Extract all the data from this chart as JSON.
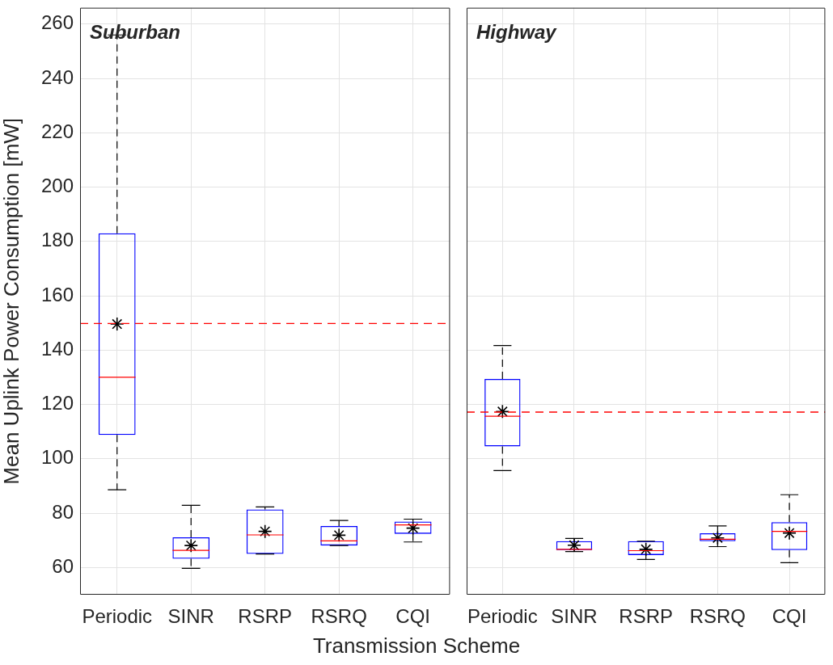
{
  "chart_data": [
    {
      "type": "box",
      "annotations": [
        "Suburban"
      ],
      "xlabel": "Transmission Scheme",
      "ylabel": "Mean Uplink Power Consumption [mW]",
      "categories": [
        "Periodic",
        "SINR",
        "RSRP",
        "RSRQ",
        "CQI"
      ],
      "ylim": [
        50,
        266
      ],
      "yticks": [
        60,
        80,
        100,
        120,
        140,
        160,
        180,
        200,
        220,
        240,
        260
      ],
      "grid": true,
      "ref_lines": [
        {
          "axis": "y",
          "value": 149.8,
          "color": "#ff0000",
          "line_style": "dashed"
        }
      ],
      "series": [
        {
          "color": "#0000ff",
          "boxes": [
            {
              "low": 88.6,
              "q1": 108.8,
              "median": 130,
              "q3": 183,
              "high": 256,
              "mean": 149.6
            },
            {
              "low": 59.7,
              "q1": 63.2,
              "median": 66.3,
              "q3": 71.1,
              "high": 82.9,
              "mean": 68.1
            },
            {
              "low": 65,
              "q1": 65,
              "median": 72,
              "q3": 81.4,
              "high": 82.3,
              "mean": 73.3
            },
            {
              "low": 68.1,
              "q1": 68.1,
              "median": 69.8,
              "q3": 75.3,
              "high": 77.3,
              "mean": 71.9
            },
            {
              "low": 69.4,
              "q1": 72.4,
              "median": 75.7,
              "q3": 76.9,
              "high": 77.8,
              "mean": 74.5
            }
          ]
        }
      ]
    },
    {
      "type": "box",
      "annotations": [
        "Highway"
      ],
      "categories": [
        "Periodic",
        "SINR",
        "RSRP",
        "RSRQ",
        "CQI"
      ],
      "ylim": [
        50,
        266
      ],
      "yticks": [
        60,
        80,
        100,
        120,
        140,
        160,
        180,
        200,
        220,
        240,
        260
      ],
      "grid": true,
      "tick_labels": "x",
      "ref_lines": [
        {
          "axis": "y",
          "value": 117.2,
          "color": "#ff0000",
          "line_style": "dashed"
        }
      ],
      "series": [
        {
          "color": "#0000ff",
          "boxes": [
            {
              "low": 95.7,
              "q1": 104.6,
              "median": 115.7,
              "q3": 129.4,
              "high": 141.7,
              "mean": 117.4
            },
            {
              "low": 65.9,
              "q1": 66.4,
              "median": 66.7,
              "q3": 69.7,
              "high": 70.7,
              "mean": 68.2
            },
            {
              "low": 63,
              "q1": 64.6,
              "median": 66.2,
              "q3": 69.7,
              "high": 69.7,
              "mean": 66.7
            },
            {
              "low": 67.7,
              "q1": 69.7,
              "median": 70.4,
              "q3": 72.6,
              "high": 75.3,
              "mean": 70.9
            },
            {
              "low": 61.8,
              "q1": 66.4,
              "median": 73.3,
              "q3": 76.7,
              "high": 86.8,
              "mean": 72.7
            }
          ]
        }
      ]
    }
  ]
}
